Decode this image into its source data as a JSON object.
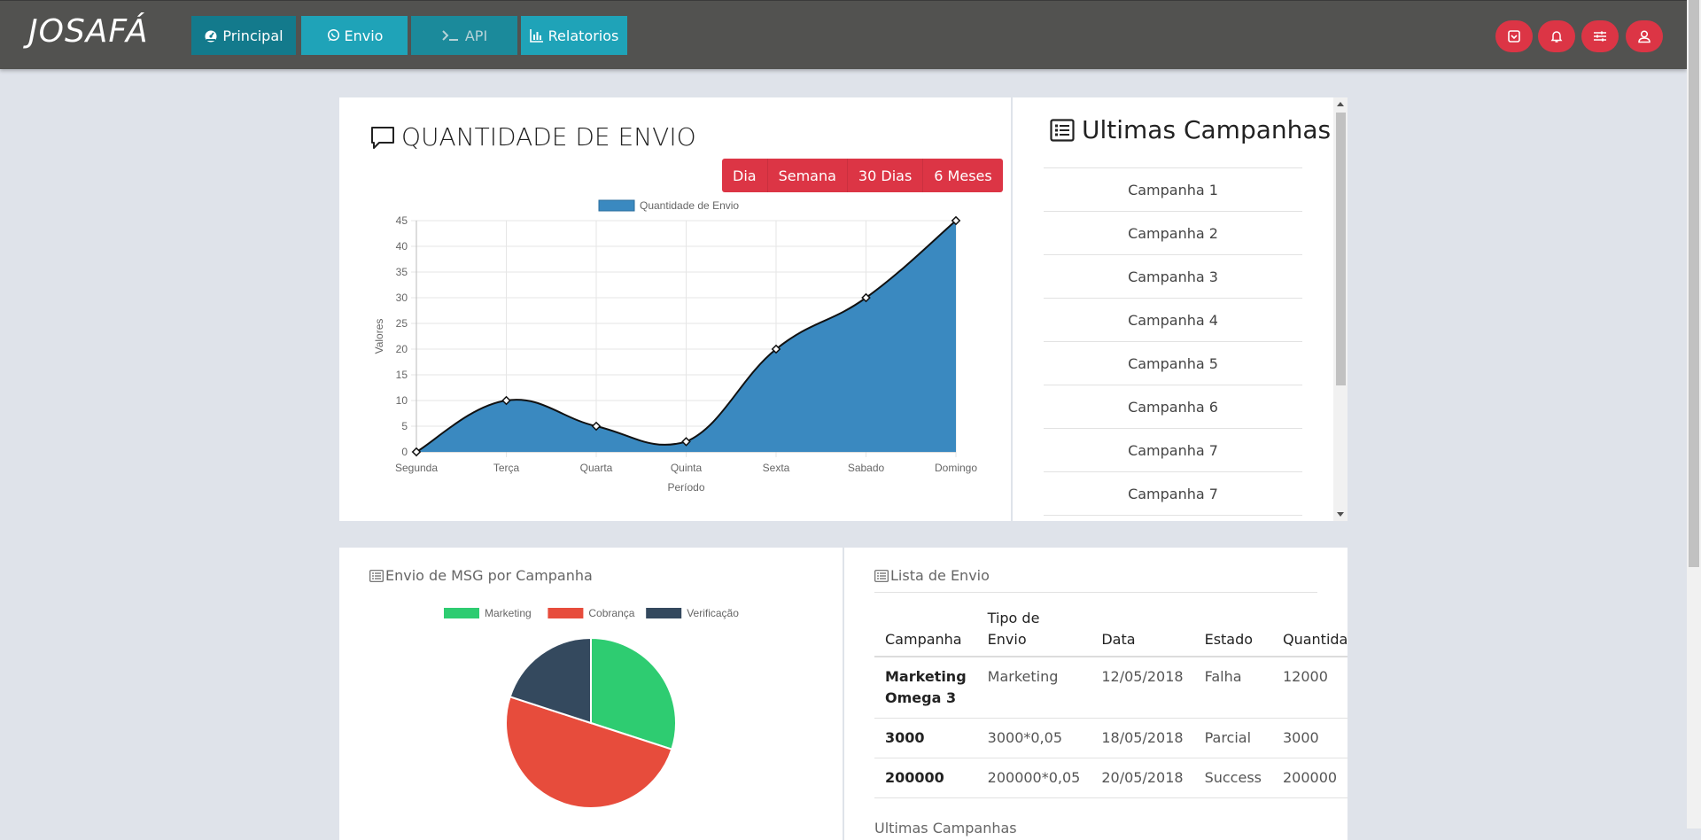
{
  "navbar": {
    "brand": "JOSAFÁ",
    "nav": [
      {
        "label": "Principal",
        "icon": "dashboard-icon"
      },
      {
        "label": "Envio",
        "icon": "whatsapp-icon"
      },
      {
        "label": "API",
        "icon": "terminal-icon"
      },
      {
        "label": "Relatorios",
        "icon": "bar-chart-icon"
      }
    ],
    "actions": [
      "archive-icon",
      "bell-icon",
      "sliders-icon",
      "user-icon"
    ],
    "colors": {
      "bar": "#525250",
      "nav": "#1fa3b8",
      "action": "#dc3545"
    }
  },
  "quantity_card": {
    "title": "QUANTIDADE DE ENVIO",
    "periods": [
      "Dia",
      "Semana",
      "30 Dias",
      "6 Meses"
    ]
  },
  "campaigns_card": {
    "title": "Ultimas Campanhas",
    "items": [
      "Campanha 1",
      "Campanha 2",
      "Campanha 3",
      "Campanha 4",
      "Campanha 5",
      "Campanha 6",
      "Campanha 7",
      "Campanha 7"
    ]
  },
  "pie_card": {
    "title": "Envio de MSG por Campanha"
  },
  "list_card": {
    "title": "Lista de Envio",
    "headers": {
      "campanha": "Campanha",
      "tipo": "Tipo de Envio",
      "data": "Data",
      "estado": "Estado",
      "quantidade": "Quantidade"
    },
    "rows": [
      {
        "campanha": "Marketing Omega 3",
        "tipo": "Marketing",
        "data": "12/05/2018",
        "estado": "Falha",
        "quantidade": "12000"
      },
      {
        "campanha": "3000",
        "tipo": "3000*0,05",
        "data": "18/05/2018",
        "estado": "Parcial",
        "quantidade": "3000"
      },
      {
        "campanha": "200000",
        "tipo": "200000*0,05",
        "data": "20/05/2018",
        "estado": "Success",
        "quantidade": "200000"
      }
    ],
    "footer": "Ultimas Campanhas"
  },
  "chart_data": [
    {
      "type": "area",
      "title": "",
      "legend": [
        "Quantidade de Envio"
      ],
      "categories": [
        "Segunda",
        "Terça",
        "Quarta",
        "Quinta",
        "Sexta",
        "Sabado",
        "Domingo"
      ],
      "series": [
        {
          "name": "Quantidade de Envio",
          "values": [
            0,
            10,
            5,
            2,
            20,
            30,
            45
          ],
          "color": "#3a89c0"
        }
      ],
      "xlabel": "Período",
      "ylabel": "Valores",
      "ylim": [
        0,
        45
      ],
      "yticks": [
        0,
        5,
        10,
        15,
        20,
        25,
        30,
        35,
        40,
        45
      ],
      "grid": true
    },
    {
      "type": "pie",
      "legend_position": "top",
      "slices": [
        {
          "label": "Marketing",
          "value": 30,
          "color": "#2ecc71"
        },
        {
          "label": "Cobrança",
          "value": 50,
          "color": "#e74c3c"
        },
        {
          "label": "Verificação",
          "value": 20,
          "color": "#34495e"
        }
      ]
    }
  ]
}
